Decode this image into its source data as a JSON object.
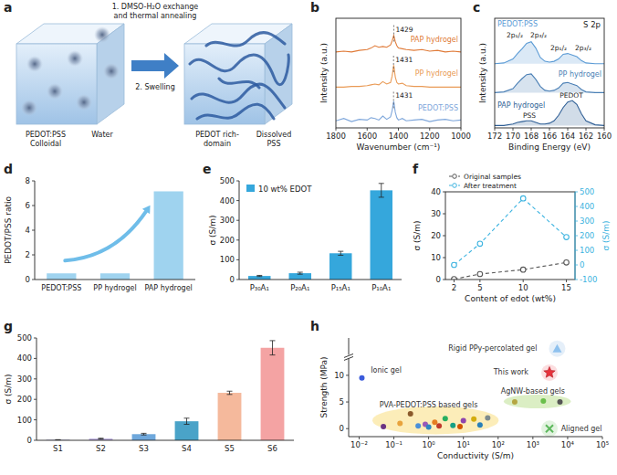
{
  "schematic": {
    "panel": "a",
    "step1": [
      "1. DMSO-H₂O exchange",
      "and thermal annealing"
    ],
    "step2": "2. Swelling",
    "colloid": [
      "PEDOT:PSS",
      "Colloidal"
    ],
    "water": "Water",
    "domain": [
      "PEDOT rich-",
      "domain"
    ],
    "pss": [
      "Dissolved",
      "PSS"
    ]
  },
  "chart_data": [
    {
      "panel": "b",
      "type": "line",
      "x": [
        1800,
        1750,
        1700,
        1650,
        1600,
        1575,
        1550,
        1525,
        1500,
        1475,
        1450,
        1440,
        1430,
        1420,
        1410,
        1400,
        1375,
        1350,
        1300,
        1250,
        1200,
        1150,
        1100,
        1050,
        1000
      ],
      "xlim": [
        1800,
        1000
      ],
      "xticks": [
        1800,
        1600,
        1400,
        1200,
        1000
      ],
      "ylim": [
        0,
        14
      ],
      "tick_labels": "x",
      "x_label": "Wavenumber (cm⁻¹)",
      "y_label": "Intensity (a.u.)",
      "series": [
        {
          "name": "PAP hydrogel",
          "color": "#e07b39",
          "values": [
            9.7,
            9.8,
            9.7,
            9.9,
            10.0,
            10.2,
            10.5,
            10.3,
            10.4,
            10.3,
            10.6,
            11.1,
            11.8,
            11.0,
            10.5,
            10.2,
            10.1,
            10.0,
            9.9,
            10.0,
            9.8,
            9.9,
            9.7,
            9.8,
            9.7
          ]
        },
        {
          "name": "PP hydrogel",
          "color": "#e99a55",
          "values": [
            5.2,
            5.2,
            5.3,
            5.3,
            5.4,
            5.5,
            5.6,
            5.5,
            5.9,
            5.6,
            5.8,
            6.6,
            8.0,
            6.5,
            5.8,
            5.6,
            5.7,
            5.4,
            5.3,
            5.3,
            5.2,
            5.2,
            5.2,
            5.2,
            5.2
          ]
        },
        {
          "name": "PEDOT:PSS",
          "color": "#7fa7db",
          "values": [
            0.9,
            1.2,
            0.8,
            1.1,
            1.0,
            1.3,
            1.2,
            1.0,
            1.5,
            1.1,
            1.4,
            2.2,
            3.4,
            2.0,
            1.3,
            1.0,
            1.2,
            0.9,
            1.0,
            1.1,
            0.8,
            1.0,
            1.1,
            0.9,
            1.0
          ]
        }
      ],
      "annotations": [
        {
          "x": 1429,
          "y": 12.3,
          "text": "1429"
        },
        {
          "x": 1431,
          "y": 8.4,
          "text": "1431"
        },
        {
          "x": 1431,
          "y": 3.8,
          "text": "1431"
        }
      ]
    },
    {
      "panel": "c",
      "type": "line",
      "title": "S 2p",
      "x": [
        172,
        171,
        170,
        169.5,
        169,
        168.5,
        168,
        167.5,
        167,
        166.5,
        166,
        165.5,
        165,
        164.5,
        164,
        163.5,
        163,
        162.5,
        162,
        161,
        160
      ],
      "xlim": [
        172,
        160
      ],
      "xticks": [
        172,
        170,
        168,
        166,
        164,
        162,
        160
      ],
      "ylim": [
        0,
        14
      ],
      "tick_labels": "x",
      "x_label": "Binding Energy (eV)",
      "y_label": "Intensity (a.u.)",
      "series": [
        {
          "name": "PEDOT:PSS",
          "color": "#5b9bd5",
          "values": [
            8.2,
            8.3,
            8.8,
            9.5,
            10.1,
            10.8,
            11.0,
            10.2,
            9.0,
            8.5,
            8.4,
            8.5,
            8.8,
            9.4,
            9.5,
            9.3,
            9.1,
            8.6,
            8.3,
            8.2,
            8.2
          ]
        },
        {
          "name": "PP hydrogel",
          "color": "#4a7fb5",
          "values": [
            4.5,
            4.6,
            5.0,
            5.7,
            6.3,
            6.8,
            6.9,
            6.2,
            5.3,
            4.8,
            4.7,
            4.8,
            5.1,
            5.7,
            5.8,
            5.6,
            5.4,
            4.9,
            4.6,
            4.5,
            4.5
          ]
        },
        {
          "name": "PAP hydrogel",
          "color": "#2f5f96",
          "values": [
            0.3,
            0.3,
            0.5,
            0.7,
            0.8,
            0.9,
            0.9,
            0.7,
            0.5,
            0.5,
            0.6,
            0.9,
            1.6,
            2.6,
            3.3,
            3.5,
            3.0,
            1.8,
            0.9,
            0.4,
            0.3
          ]
        }
      ],
      "annotations": [
        {
          "x": 169.8,
          "y": 11.6,
          "text": "2p₁/₂"
        },
        {
          "x": 167.2,
          "y": 11.6,
          "text": "2p₃/₂"
        },
        {
          "x": 165.0,
          "y": 9.9,
          "text": "2p₁/₂"
        },
        {
          "x": 162.3,
          "y": 9.9,
          "text": "2p₃/₂"
        },
        {
          "x": 168.2,
          "y": 1.3,
          "text": "PSS"
        },
        {
          "x": 163.6,
          "y": 3.9,
          "text": "PEDOT"
        }
      ]
    },
    {
      "panel": "d",
      "type": "bar",
      "categories": [
        "PEDOT:PSS",
        "PP hydrogel",
        "PAP hydrogel"
      ],
      "values": [
        0.5,
        0.5,
        7.15
      ],
      "color": "#9fd3ef",
      "ylim": [
        0,
        8
      ],
      "yticks": [
        0,
        2,
        4,
        6,
        8
      ],
      "y_label": "PEDOT/PSS ratio"
    },
    {
      "panel": "e",
      "type": "bar",
      "categories": [
        "P₃₀A₁",
        "P₂₀A₁",
        "P₁₅A₁",
        "P₁₀A₁"
      ],
      "series": [
        {
          "name": "10 wt% EDOT",
          "color": "#35a7dc",
          "values": [
            18,
            32,
            133,
            452
          ],
          "errors": [
            3,
            5,
            10,
            35
          ]
        }
      ],
      "ylim": [
        0,
        500
      ],
      "yticks": [
        0,
        100,
        200,
        300,
        400,
        500
      ],
      "y_label": "σ (S/m)",
      "legend": "upper left"
    },
    {
      "panel": "f",
      "type": "line",
      "x": [
        2,
        5,
        10,
        15
      ],
      "xlim": [
        1,
        16
      ],
      "xticks": [
        2,
        5,
        10,
        15
      ],
      "ylim": [
        0,
        40
      ],
      "yticks": [
        0,
        10,
        20,
        30,
        40
      ],
      "y2lim": [
        -100,
        500
      ],
      "y2ticks": [
        -100,
        0,
        100,
        200,
        300,
        400,
        500
      ],
      "x_label": "Content of edot (wt%)",
      "y_label": "σ (S/m)",
      "y2_label": "σ (S/m)",
      "legend": "top",
      "series": [
        {
          "name": "Original samples",
          "color": "#555555",
          "marker": "circle",
          "line_style": "dashed",
          "values": [
            0.2,
            2.5,
            4.5,
            7.8
          ]
        },
        {
          "name": "After treatment",
          "color": "#3bb3e0",
          "marker": "circle",
          "line_style": "dashed",
          "axis": "y2",
          "values": [
            0,
            145,
            455,
            190
          ]
        }
      ]
    },
    {
      "panel": "g",
      "type": "bar",
      "categories": [
        "S1",
        "S2",
        "S3",
        "S4",
        "S5",
        "S6"
      ],
      "values": [
        2,
        8,
        30,
        93,
        232,
        452
      ],
      "errors": [
        1,
        2,
        4,
        15,
        8,
        35
      ],
      "colors": [
        "#8e8fb5",
        "#b7a9dc",
        "#6fa8dc",
        "#4aa3c8",
        "#f5b99c",
        "#f4a3a3"
      ],
      "ylim": [
        0,
        500
      ],
      "yticks": [
        0,
        100,
        200,
        300,
        400,
        500
      ],
      "y_label": "σ (S/m)"
    },
    {
      "panel": "h",
      "type": "scatter",
      "log": "x",
      "xlim": [
        0.005,
        100000
      ],
      "xticks": [
        {
          "value": 0.01,
          "label": "10⁻²"
        },
        {
          "value": 0.1,
          "label": "10⁻¹"
        },
        {
          "value": 1,
          "label": "10⁰"
        },
        {
          "value": 10,
          "label": "10¹"
        },
        {
          "value": 100,
          "label": "10²"
        },
        {
          "value": 1000,
          "label": "10³"
        },
        {
          "value": 10000,
          "label": "10⁴"
        },
        {
          "value": 100000,
          "label": "10⁵"
        }
      ],
      "ylim": [
        -1.5,
        17
      ],
      "yticks": [
        0,
        5,
        10
      ],
      "x_label": "Conductivity (S/m)",
      "y_label": "Strength (MPa)",
      "series": [
        {
          "x": [
            0.05,
            0.15,
            0.3,
            0.5,
            0.8,
            1,
            1.5,
            2,
            3,
            5,
            8,
            10,
            20,
            30,
            50,
            0.012,
            300,
            2000,
            6000
          ],
          "values": [
            0.4,
            1.0,
            2.8,
            0.5,
            0.8,
            0.3,
            1.2,
            0.5,
            1.9,
            0.6,
            0.4,
            1.5,
            1.8,
            0.7,
            2.0,
            9.5,
            5.0,
            5.2,
            5.0
          ],
          "colors": [
            "#6c3483",
            "#e8a33d",
            "#8b5a2b",
            "#4a90d9",
            "#9b59b6",
            "#2e86c1",
            "#e67e22",
            "#c0392b",
            "#27ae60",
            "#16a085",
            "#d35400",
            "#8e44ad",
            "#d4ac0d",
            "#2980b9",
            "#7f8c8d",
            "#3b5bdb",
            "#b5a642",
            "#6abf4b",
            "#555555"
          ],
          "marker": "circle"
        },
        {
          "x": [
            3000
          ],
          "values": [
            10.5
          ],
          "color": "#e8323c",
          "marker": "star"
        },
        {
          "x": [
            5000
          ],
          "values": [
            15
          ],
          "color": "#8ec1ee",
          "marker": "triangle"
        },
        {
          "x": [
            3000
          ],
          "values": [
            0
          ],
          "color": "#5cb85c",
          "marker": "x"
        }
      ],
      "annotations": [
        {
          "x": 70,
          "y": 15,
          "text": "Rigid PPy-percolated gel"
        },
        {
          "x": 0.06,
          "y": 10.9,
          "text": "Ionic gel"
        },
        {
          "x": 234,
          "y": 10.5,
          "text": "This work"
        },
        {
          "x": 1000,
          "y": 6.9,
          "text": "AgNW-based gels"
        },
        {
          "x": 1,
          "y": 4.4,
          "text": "PVA-PEDOT:PSS based gels"
        },
        {
          "x": 25000,
          "y": 0,
          "text": "Aligned gel"
        }
      ]
    }
  ]
}
